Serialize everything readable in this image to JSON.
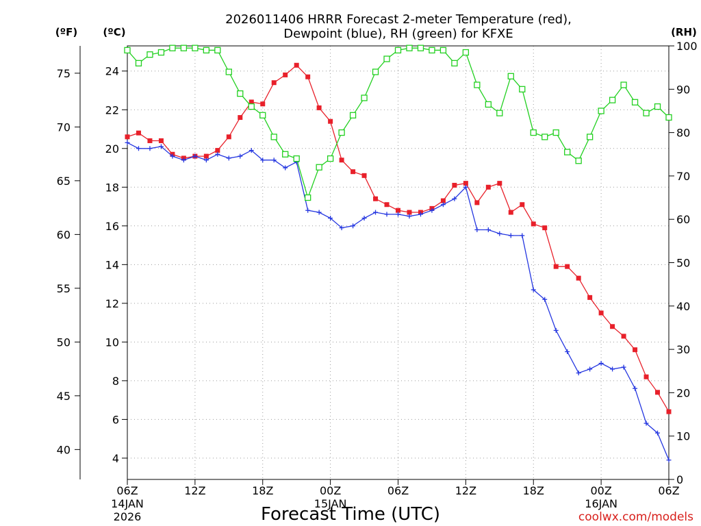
{
  "chart_data": {
    "type": "line",
    "title": "2026011406 HRRR Forecast 2-meter Temperature (red),",
    "subtitle": "Dewpoint (blue), RH (green) for KFXE",
    "xlabel": "Forecast Time (UTC)",
    "watermark": "coolwx.com/models",
    "units": {
      "f": "(ºF)",
      "c": "(ºC)",
      "rh": "(RH)"
    },
    "x_hours": [
      0,
      1,
      2,
      3,
      4,
      5,
      6,
      7,
      8,
      9,
      10,
      11,
      12,
      13,
      14,
      15,
      16,
      17,
      18,
      19,
      20,
      21,
      22,
      23,
      24,
      25,
      26,
      27,
      28,
      29,
      30,
      31,
      32,
      33,
      34,
      35,
      36,
      37,
      38,
      39,
      40,
      41,
      42,
      43,
      44,
      45,
      46,
      47,
      48
    ],
    "x_ticks": [
      {
        "hour": 0,
        "label": "06Z",
        "date": "14JAN",
        "year": "2026"
      },
      {
        "hour": 6,
        "label": "12Z",
        "date": "",
        "year": ""
      },
      {
        "hour": 12,
        "label": "18Z",
        "date": "",
        "year": ""
      },
      {
        "hour": 18,
        "label": "00Z",
        "date": "15JAN",
        "year": ""
      },
      {
        "hour": 24,
        "label": "06Z",
        "date": "",
        "year": ""
      },
      {
        "hour": 30,
        "label": "12Z",
        "date": "",
        "year": ""
      },
      {
        "hour": 36,
        "label": "18Z",
        "date": "",
        "year": ""
      },
      {
        "hour": 42,
        "label": "00Z",
        "date": "16JAN",
        "year": ""
      },
      {
        "hour": 48,
        "label": "06Z",
        "date": "",
        "year": ""
      }
    ],
    "ylim_c": [
      2.9,
      25.3
    ],
    "ylim_rh": [
      0,
      100
    ],
    "yticks_c": [
      "4",
      "6",
      "8",
      "10",
      "12",
      "14",
      "16",
      "18",
      "20",
      "22",
      "24"
    ],
    "yticks_f": [
      "40",
      "45",
      "50",
      "55",
      "60",
      "65",
      "70",
      "75"
    ],
    "yticks_rh": [
      "0",
      "10",
      "20",
      "30",
      "40",
      "50",
      "60",
      "70",
      "80",
      "90",
      "100"
    ],
    "series": [
      {
        "name": "Temperature",
        "color": "#e8202a",
        "marker": "filled-square",
        "axis": "c",
        "values": [
          20.6,
          20.8,
          20.4,
          20.4,
          19.7,
          19.5,
          19.6,
          19.6,
          19.9,
          20.6,
          21.6,
          22.4,
          22.3,
          23.4,
          23.8,
          24.3,
          23.7,
          22.1,
          21.4,
          19.4,
          18.8,
          18.6,
          17.4,
          17.1,
          16.8,
          16.7,
          16.7,
          16.9,
          17.3,
          18.1,
          18.2,
          17.2,
          18.0,
          18.2,
          16.7,
          17.1,
          16.1,
          15.9,
          13.9,
          13.9,
          13.3,
          12.3,
          11.5,
          10.8,
          10.3,
          9.6,
          8.2,
          7.4,
          6.4
        ]
      },
      {
        "name": "Dewpoint",
        "color": "#2436e0",
        "marker": "plus",
        "axis": "c",
        "values": [
          20.3,
          20.0,
          20.0,
          20.1,
          19.6,
          19.4,
          19.6,
          19.4,
          19.7,
          19.5,
          19.6,
          19.9,
          19.4,
          19.4,
          19.0,
          19.3,
          16.8,
          16.7,
          16.4,
          15.9,
          16.0,
          16.4,
          16.7,
          16.6,
          16.6,
          16.5,
          16.6,
          16.8,
          17.1,
          17.4,
          18.0,
          15.8,
          15.8,
          15.6,
          15.5,
          15.5,
          12.7,
          12.2,
          10.6,
          9.5,
          8.4,
          8.6,
          8.9,
          8.6,
          8.7,
          7.6,
          5.8,
          5.3,
          3.9
        ]
      },
      {
        "name": "Relative Humidity",
        "color": "#22d020",
        "marker": "open-square",
        "axis": "rh",
        "values": [
          99,
          96,
          98,
          98.5,
          99.5,
          99.5,
          99.5,
          99,
          99,
          94,
          89,
          86,
          84,
          79,
          75,
          74,
          65,
          72,
          74,
          80,
          84,
          88,
          94,
          97,
          99,
          99.5,
          99.5,
          99,
          99,
          96,
          98.5,
          91,
          86.5,
          84.5,
          93,
          90,
          80,
          79,
          80,
          75.5,
          73.5,
          79,
          85,
          87.5,
          91,
          87,
          84.5,
          86,
          83.5
        ]
      }
    ]
  }
}
